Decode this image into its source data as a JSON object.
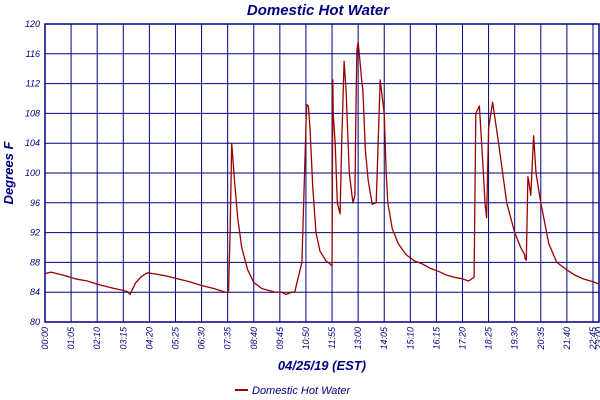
{
  "chart_data": {
    "type": "line",
    "title": "Domestic Hot Water",
    "xlabel": "04/25/19 (EST)",
    "ylabel": "Degrees F",
    "ylim": [
      80,
      120
    ],
    "yticks": [
      "80",
      "84",
      "88",
      "92",
      "96",
      "100",
      "104",
      "108",
      "112",
      "116",
      "120"
    ],
    "xlim_minutes": [
      0,
      1380
    ],
    "xtick_labels": [
      "00:00",
      "01:05",
      "02:10",
      "03:15",
      "04:20",
      "05:25",
      "06:30",
      "07:35",
      "08:40",
      "09:45",
      "10:50",
      "11:55",
      "13:00",
      "14:05",
      "15:10",
      "16:15",
      "17:20",
      "18:25",
      "19:30",
      "20:35",
      "21:40",
      "22:45",
      "23:00"
    ],
    "grid": true,
    "legend_position": "bottom-center",
    "colors": {
      "line": "#990000",
      "axis": "#000080",
      "grid": "#000080"
    },
    "series": [
      {
        "name": "Domestic Hot Water",
        "x": [
          "00:00",
          "00:15",
          "00:45",
          "01:15",
          "01:45",
          "02:15",
          "02:45",
          "03:10",
          "03:25",
          "03:32",
          "03:45",
          "04:00",
          "04:15",
          "04:30",
          "05:00",
          "05:30",
          "06:00",
          "06:30",
          "07:00",
          "07:30",
          "07:37",
          "07:41",
          "07:45",
          "07:52",
          "08:00",
          "08:10",
          "08:25",
          "08:40",
          "09:00",
          "09:20",
          "09:35",
          "09:50",
          "10:00",
          "10:15",
          "10:22",
          "10:40",
          "10:50",
          "10:52",
          "10:56",
          "11:00",
          "11:07",
          "11:15",
          "11:25",
          "11:40",
          "11:50",
          "11:55",
          "11:56",
          "11:57",
          "11:58",
          "12:03",
          "12:08",
          "12:15",
          "12:19",
          "12:25",
          "12:30",
          "12:38",
          "12:47",
          "12:52",
          "12:55",
          "12:57",
          "13:00",
          "13:03",
          "13:08",
          "13:12",
          "13:18",
          "13:25",
          "13:35",
          "13:45",
          "13:55",
          "14:05",
          "14:10",
          "14:14",
          "14:25",
          "14:40",
          "15:00",
          "15:20",
          "15:40",
          "16:00",
          "16:20",
          "16:40",
          "17:00",
          "17:20",
          "17:35",
          "17:49",
          "17:53",
          "18:02",
          "18:12",
          "18:16",
          "18:20",
          "18:25",
          "18:35",
          "18:50",
          "19:10",
          "19:30",
          "19:45",
          "19:55",
          "19:56",
          "19:59",
          "20:03",
          "20:05",
          "20:10",
          "20:17",
          "20:23",
          "20:35",
          "20:55",
          "21:15",
          "21:40",
          "22:00",
          "22:20",
          "22:45",
          "23:00"
        ],
        "y": [
          86.5,
          86.7,
          86.3,
          85.8,
          85.5,
          85.0,
          84.6,
          84.3,
          84.1,
          83.7,
          85.2,
          86.1,
          86.6,
          86.5,
          86.2,
          85.8,
          85.4,
          84.9,
          84.5,
          84.0,
          84.0,
          92.0,
          104.0,
          99.0,
          94.0,
          90.0,
          87.0,
          85.3,
          84.5,
          84.2,
          84.0,
          84.0,
          83.7,
          84.0,
          84.0,
          88.0,
          106.0,
          109.2,
          109.0,
          106.0,
          98.0,
          92.0,
          89.5,
          88.2,
          87.8,
          87.5,
          98.0,
          112.5,
          108.0,
          104.0,
          96.0,
          94.5,
          104.0,
          115.0,
          111.0,
          100.0,
          96.0,
          97.0,
          110.0,
          116.5,
          117.5,
          116.0,
          113.0,
          111.0,
          103.0,
          99.0,
          95.8,
          96.0,
          112.5,
          108.0,
          100.0,
          96.0,
          92.5,
          90.5,
          89.0,
          88.2,
          87.8,
          87.2,
          86.8,
          86.3,
          86.0,
          85.8,
          85.5,
          86.0,
          108.0,
          109.0,
          100.0,
          96.0,
          94.0,
          106.0,
          109.5,
          104.0,
          96.0,
          92.0,
          90.0,
          89.0,
          88.5,
          88.3,
          99.5,
          99.0,
          97.0,
          105.0,
          100.0,
          96.0,
          90.5,
          88.0,
          87.0,
          86.3,
          85.8,
          85.4,
          85.1
        ]
      }
    ]
  }
}
